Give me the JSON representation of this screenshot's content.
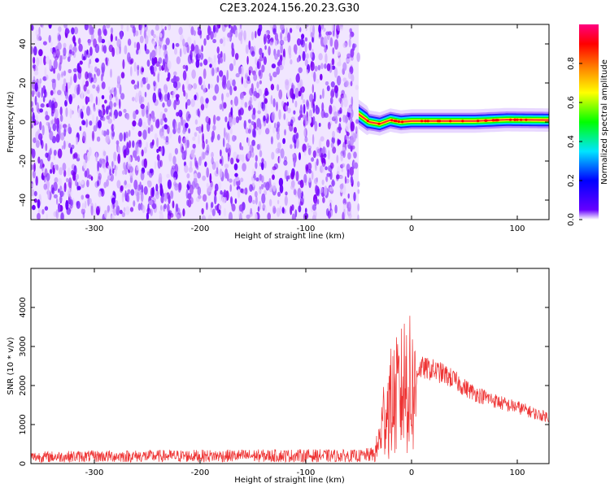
{
  "figure": {
    "title": "C2E3.2024.156.20.23.G30"
  },
  "chart_data": [
    {
      "id": "spectrogram",
      "type": "heatmap",
      "xlabel": "Height of straight line (km)",
      "ylabel": "Frequency (Hz)",
      "xlim": [
        -360,
        130
      ],
      "ylim": [
        -50,
        50
      ],
      "xticks": [
        -300,
        -200,
        -100,
        0,
        100
      ],
      "yticks": [
        -40,
        -20,
        0,
        20,
        40
      ],
      "grid": false,
      "noise_region_x": [
        -360,
        -50
      ],
      "signal_band": {
        "x_range": [
          -50,
          130
        ],
        "center_freq": [
          [
            -50,
            4
          ],
          [
            -45,
            2
          ],
          [
            -40,
            0
          ],
          [
            -30,
            -1
          ],
          [
            -20,
            1
          ],
          [
            -10,
            0
          ],
          [
            0,
            0.5
          ],
          [
            60,
            0.5
          ],
          [
            90,
            1.2
          ],
          [
            130,
            1
          ]
        ]
      },
      "colorbar": {
        "label": "Normalized spectral amplitude",
        "range": [
          0,
          1
        ],
        "ticks": [
          "0.0",
          "0.2",
          "0.4",
          "0.6",
          "0.8"
        ],
        "colors": [
          "#ffffff",
          "#6600ff",
          "#0000ff",
          "#00e5ff",
          "#00ff00",
          "#ffff00",
          "#ff8000",
          "#ff0000",
          "#ff0080"
        ]
      }
    },
    {
      "id": "snr",
      "type": "line",
      "xlabel": "Height of straight line (km)",
      "ylabel": "SNR (10 * v/v)",
      "xlim": [
        -360,
        130
      ],
      "ylim": [
        0,
        5000
      ],
      "xticks": [
        -300,
        -200,
        -100,
        0,
        100
      ],
      "yticks": [
        0,
        1000,
        2000,
        3000,
        4000
      ],
      "grid": false,
      "series": [
        {
          "color": "#ee3333",
          "x": [
            -360,
            -300,
            -200,
            -100,
            -50,
            -35,
            -30,
            -25,
            -20,
            -15,
            -10,
            -5,
            0,
            5,
            10,
            20,
            30,
            40,
            50,
            60,
            70,
            80,
            90,
            100,
            110,
            120,
            130
          ],
          "y": [
            200,
            220,
            230,
            240,
            230,
            280,
            900,
            1900,
            2100,
            2300,
            2500,
            3000,
            2600,
            2400,
            2450,
            2400,
            2300,
            2150,
            1950,
            1800,
            1700,
            1600,
            1500,
            1450,
            1350,
            1250,
            1200
          ]
        }
      ]
    }
  ]
}
